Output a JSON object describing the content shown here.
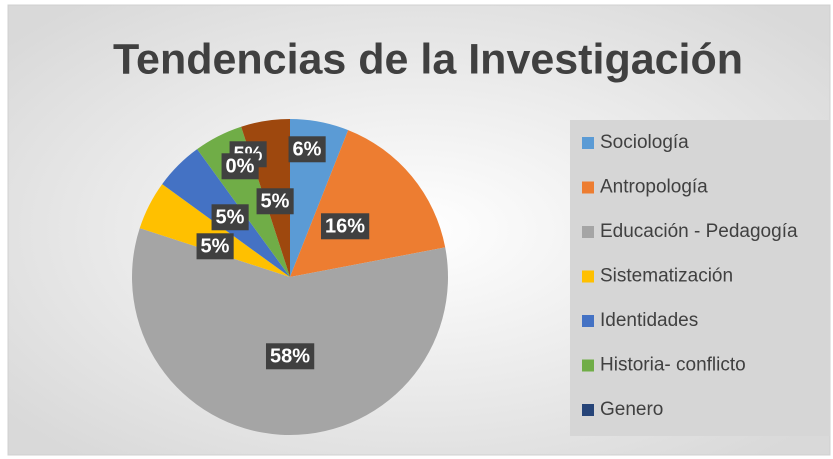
{
  "chart_data": {
    "type": "pie",
    "title": "Tendencias de la Investigación",
    "categories": [
      "Sociología",
      "Antropología",
      "Educación - Pedagogía",
      "Sistematización",
      "Identidades",
      "Historia- conflicto",
      "Genero",
      null
    ],
    "values": [
      6,
      16,
      58,
      5,
      5,
      5,
      0,
      5
    ],
    "value_labels": [
      "6%",
      "16%",
      "58%",
      "5%",
      "5%",
      "5%",
      "0%",
      "5%"
    ],
    "colors": [
      "#5b9bd5",
      "#ed7d31",
      "#a5a5a5",
      "#ffc000",
      "#4472c4",
      "#70ad47",
      "#264478",
      "#9e480e"
    ],
    "legend": "right"
  }
}
